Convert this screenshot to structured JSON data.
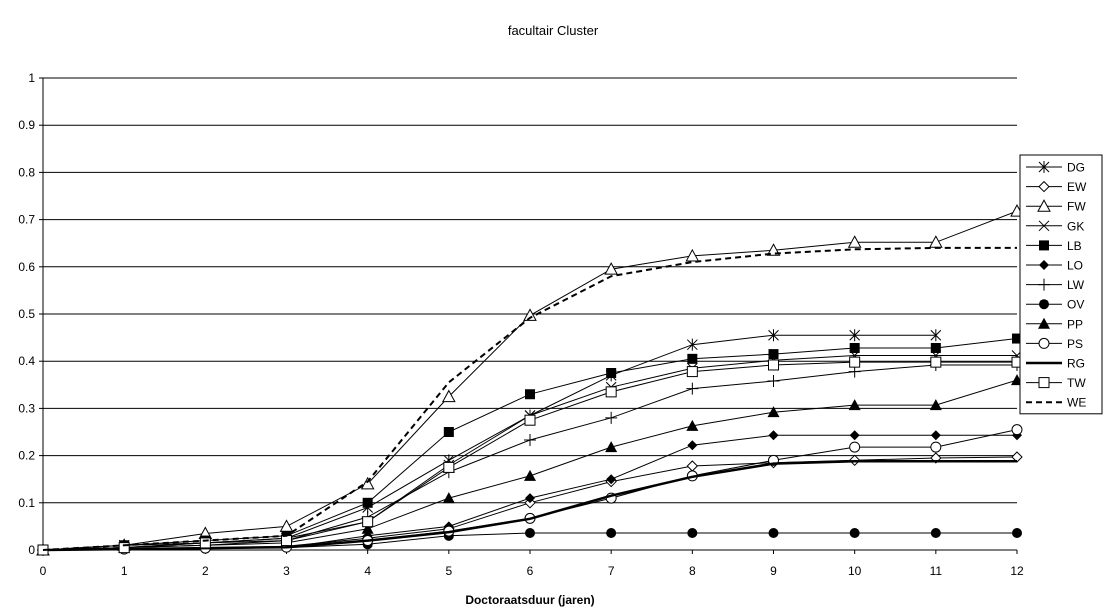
{
  "chart_data": {
    "type": "line",
    "title": "facultair Cluster",
    "xlabel": "Doctoraatsduur (jaren)",
    "ylabel": "",
    "x": [
      0,
      1,
      2,
      3,
      4,
      5,
      6,
      7,
      8,
      9,
      10,
      11,
      12
    ],
    "xlim": [
      0,
      12
    ],
    "ylim": [
      0,
      1
    ],
    "x_ticks": [
      "0",
      "1",
      "2",
      "3",
      "4",
      "5",
      "6",
      "7",
      "8",
      "9",
      "10",
      "11",
      "12"
    ],
    "y_ticks": [
      "0",
      "0.1",
      "0.2",
      "0.3",
      "0.4",
      "0.5",
      "0.6",
      "0.7",
      "0.8",
      "0.9",
      "1"
    ],
    "grid": "horizontal",
    "legend_position": "right",
    "series": [
      {
        "name": "DG",
        "marker": "asterisk",
        "dash": false,
        "width": 1,
        "values": [
          0,
          0.01,
          0.015,
          0.025,
          0.09,
          0.19,
          0.285,
          0.37,
          0.435,
          0.455,
          0.455,
          0.455,
          null
        ]
      },
      {
        "name": "EW",
        "marker": "diamond-open",
        "dash": false,
        "width": 1,
        "values": [
          0,
          0.002,
          0.004,
          0.008,
          0.025,
          0.045,
          0.1,
          0.145,
          0.178,
          0.185,
          0.19,
          0.195,
          0.197
        ]
      },
      {
        "name": "FW",
        "marker": "triangle-open",
        "dash": false,
        "width": 1,
        "values": [
          0,
          0.01,
          0.035,
          0.05,
          0.14,
          0.325,
          0.497,
          0.595,
          0.623,
          0.635,
          0.652,
          0.652,
          0.718
        ]
      },
      {
        "name": "GK",
        "marker": "x",
        "dash": false,
        "width": 1,
        "values": [
          0,
          0.005,
          0.015,
          0.025,
          0.06,
          0.18,
          0.285,
          0.345,
          0.385,
          0.402,
          0.412,
          0.412,
          0.412
        ]
      },
      {
        "name": "LB",
        "marker": "square-filled",
        "dash": false,
        "width": 1,
        "values": [
          0,
          0.01,
          0.02,
          0.03,
          0.1,
          0.25,
          0.33,
          0.375,
          0.405,
          0.415,
          0.428,
          0.428,
          0.448
        ]
      },
      {
        "name": "LO",
        "marker": "diamond-filled",
        "dash": false,
        "width": 1,
        "values": [
          0,
          0.002,
          0.003,
          0.005,
          0.03,
          0.05,
          0.11,
          0.15,
          0.222,
          0.243,
          0.243,
          0.243,
          0.243
        ]
      },
      {
        "name": "LW",
        "marker": "plus",
        "dash": false,
        "width": 1,
        "values": [
          0,
          0.005,
          0.01,
          0.02,
          0.07,
          0.165,
          0.233,
          0.28,
          0.342,
          0.358,
          0.378,
          0.392,
          0.392
        ]
      },
      {
        "name": "OV",
        "marker": "circle-filled",
        "dash": false,
        "width": 1,
        "values": [
          0,
          0.002,
          0.003,
          0.005,
          0.012,
          0.03,
          0.036,
          0.036,
          0.036,
          0.036,
          0.036,
          0.036,
          0.036
        ]
      },
      {
        "name": "PP",
        "marker": "triangle-filled",
        "dash": false,
        "width": 1,
        "values": [
          0,
          0.005,
          0.01,
          0.015,
          0.045,
          0.11,
          0.157,
          0.218,
          0.263,
          0.292,
          0.307,
          0.307,
          0.36
        ]
      },
      {
        "name": "PS",
        "marker": "circle-open",
        "dash": false,
        "width": 1,
        "values": [
          0,
          0.002,
          0.004,
          0.006,
          0.02,
          0.04,
          0.067,
          0.11,
          0.157,
          0.19,
          0.218,
          0.218,
          0.255
        ]
      },
      {
        "name": "RG",
        "marker": "none",
        "dash": false,
        "width": 2.5,
        "values": [
          0,
          0.002,
          0.004,
          0.006,
          0.02,
          0.038,
          0.066,
          0.115,
          0.155,
          0.183,
          0.188,
          0.188,
          0.188
        ]
      },
      {
        "name": "TW",
        "marker": "square-open",
        "dash": false,
        "width": 1,
        "values": [
          0,
          0.005,
          0.015,
          0.02,
          0.06,
          0.175,
          0.275,
          0.335,
          0.378,
          0.392,
          0.398,
          0.398,
          0.398
        ]
      },
      {
        "name": "WE",
        "marker": "none",
        "dash": true,
        "width": 2,
        "values": [
          0,
          0.01,
          0.02,
          0.03,
          0.145,
          0.355,
          0.492,
          0.58,
          0.61,
          0.628,
          0.637,
          0.64,
          0.64
        ]
      }
    ]
  }
}
